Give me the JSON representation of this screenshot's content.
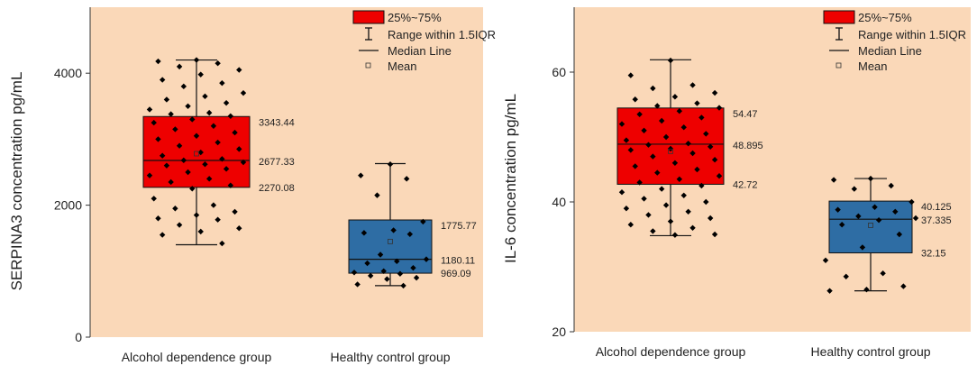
{
  "chart_data": [
    {
      "type": "box",
      "ylabel": "SERPINA3 concentration pg/mL",
      "ylim": [
        0,
        5000
      ],
      "yticks": [
        0,
        2000,
        4000
      ],
      "categories": [
        "Alcohol dependence group",
        "Healthy control group"
      ],
      "legend": {
        "position": "top-right",
        "items": [
          "25%~75%",
          "Range within 1.5IQR",
          "Median Line",
          "Mean"
        ]
      },
      "boxes": [
        {
          "category": "Alcohol dependence group",
          "color": "#ee0000",
          "q1": 2270.08,
          "median": 2677.33,
          "q3": 3343.44,
          "whisker_low": 1400,
          "whisker_high": 4200,
          "mean": 2780,
          "labels": {
            "q3": "3343.44",
            "median": "2677.33",
            "q1": "2270.08"
          },
          "points": [
            4200,
            4180,
            4150,
            4100,
            4050,
            3980,
            3900,
            3850,
            3800,
            3700,
            3650,
            3600,
            3550,
            3500,
            3450,
            3400,
            3380,
            3350,
            3300,
            3250,
            3200,
            3150,
            3100,
            3050,
            3000,
            2950,
            2900,
            2850,
            2800,
            2750,
            2700,
            2680,
            2650,
            2620,
            2600,
            2550,
            2500,
            2450,
            2400,
            2350,
            2300,
            2250,
            2100,
            2000,
            1950,
            1900,
            1850,
            1800,
            1780,
            1700,
            1650,
            1600,
            1550,
            1420
          ]
        },
        {
          "category": "Healthy control group",
          "color": "#2e6da4",
          "q1": 969.09,
          "median": 1180.11,
          "q3": 1775.77,
          "whisker_low": 780,
          "whisker_high": 2630,
          "mean": 1450,
          "labels": {
            "q3": "1775.77",
            "median": "1180.11",
            "q1": "969.09"
          },
          "points": [
            2620,
            2450,
            2400,
            2150,
            1750,
            1620,
            1580,
            1560,
            1250,
            1180,
            1150,
            1120,
            1050,
            1000,
            980,
            960,
            930,
            900,
            880,
            800,
            780
          ]
        }
      ]
    },
    {
      "type": "box",
      "ylabel": "IL-6 concentration pg/mL",
      "ylim": [
        20,
        70
      ],
      "yticks": [
        20,
        40,
        60
      ],
      "categories": [
        "Alcohol dependence group",
        "Healthy control group"
      ],
      "legend": {
        "position": "top-right",
        "items": [
          "25%~75%",
          "Range within 1.5IQR",
          "Median Line",
          "Mean"
        ]
      },
      "boxes": [
        {
          "category": "Alcohol dependence group",
          "color": "#ee0000",
          "q1": 42.72,
          "median": 48.895,
          "q3": 54.47,
          "whisker_low": 34.8,
          "whisker_high": 61.9,
          "mean": 47.8,
          "labels": {
            "q3": "54.47",
            "median": "48.895",
            "q1": "42.72"
          },
          "points": [
            61.8,
            59.5,
            58.0,
            57.5,
            56.8,
            56.2,
            55.8,
            55.2,
            54.8,
            54.5,
            54.0,
            53.5,
            53.0,
            52.5,
            52.0,
            51.5,
            51.0,
            50.5,
            50.0,
            49.5,
            49.0,
            48.8,
            48.5,
            48.2,
            48.0,
            47.5,
            47.0,
            46.5,
            46.0,
            45.5,
            45.0,
            44.5,
            44.0,
            43.5,
            43.0,
            42.5,
            42.0,
            41.5,
            41.0,
            40.5,
            40.0,
            39.5,
            39.0,
            38.5,
            38.0,
            37.5,
            37.0,
            36.5,
            36.0,
            35.5,
            35.0,
            34.9
          ]
        },
        {
          "category": "Healthy control group",
          "color": "#2e6da4",
          "q1": 32.15,
          "median": 37.335,
          "q3": 40.125,
          "whisker_low": 26.3,
          "whisker_high": 43.6,
          "mean": 36.4,
          "labels": {
            "q3": "40.125",
            "median": "37.335",
            "q1": "32.15"
          },
          "points": [
            43.6,
            43.4,
            42.5,
            42.0,
            40.0,
            39.2,
            38.8,
            38.5,
            37.8,
            37.5,
            37.2,
            36.5,
            35.0,
            33.0,
            31.0,
            29.0,
            28.5,
            27.0,
            26.5,
            26.3
          ]
        }
      ]
    }
  ]
}
